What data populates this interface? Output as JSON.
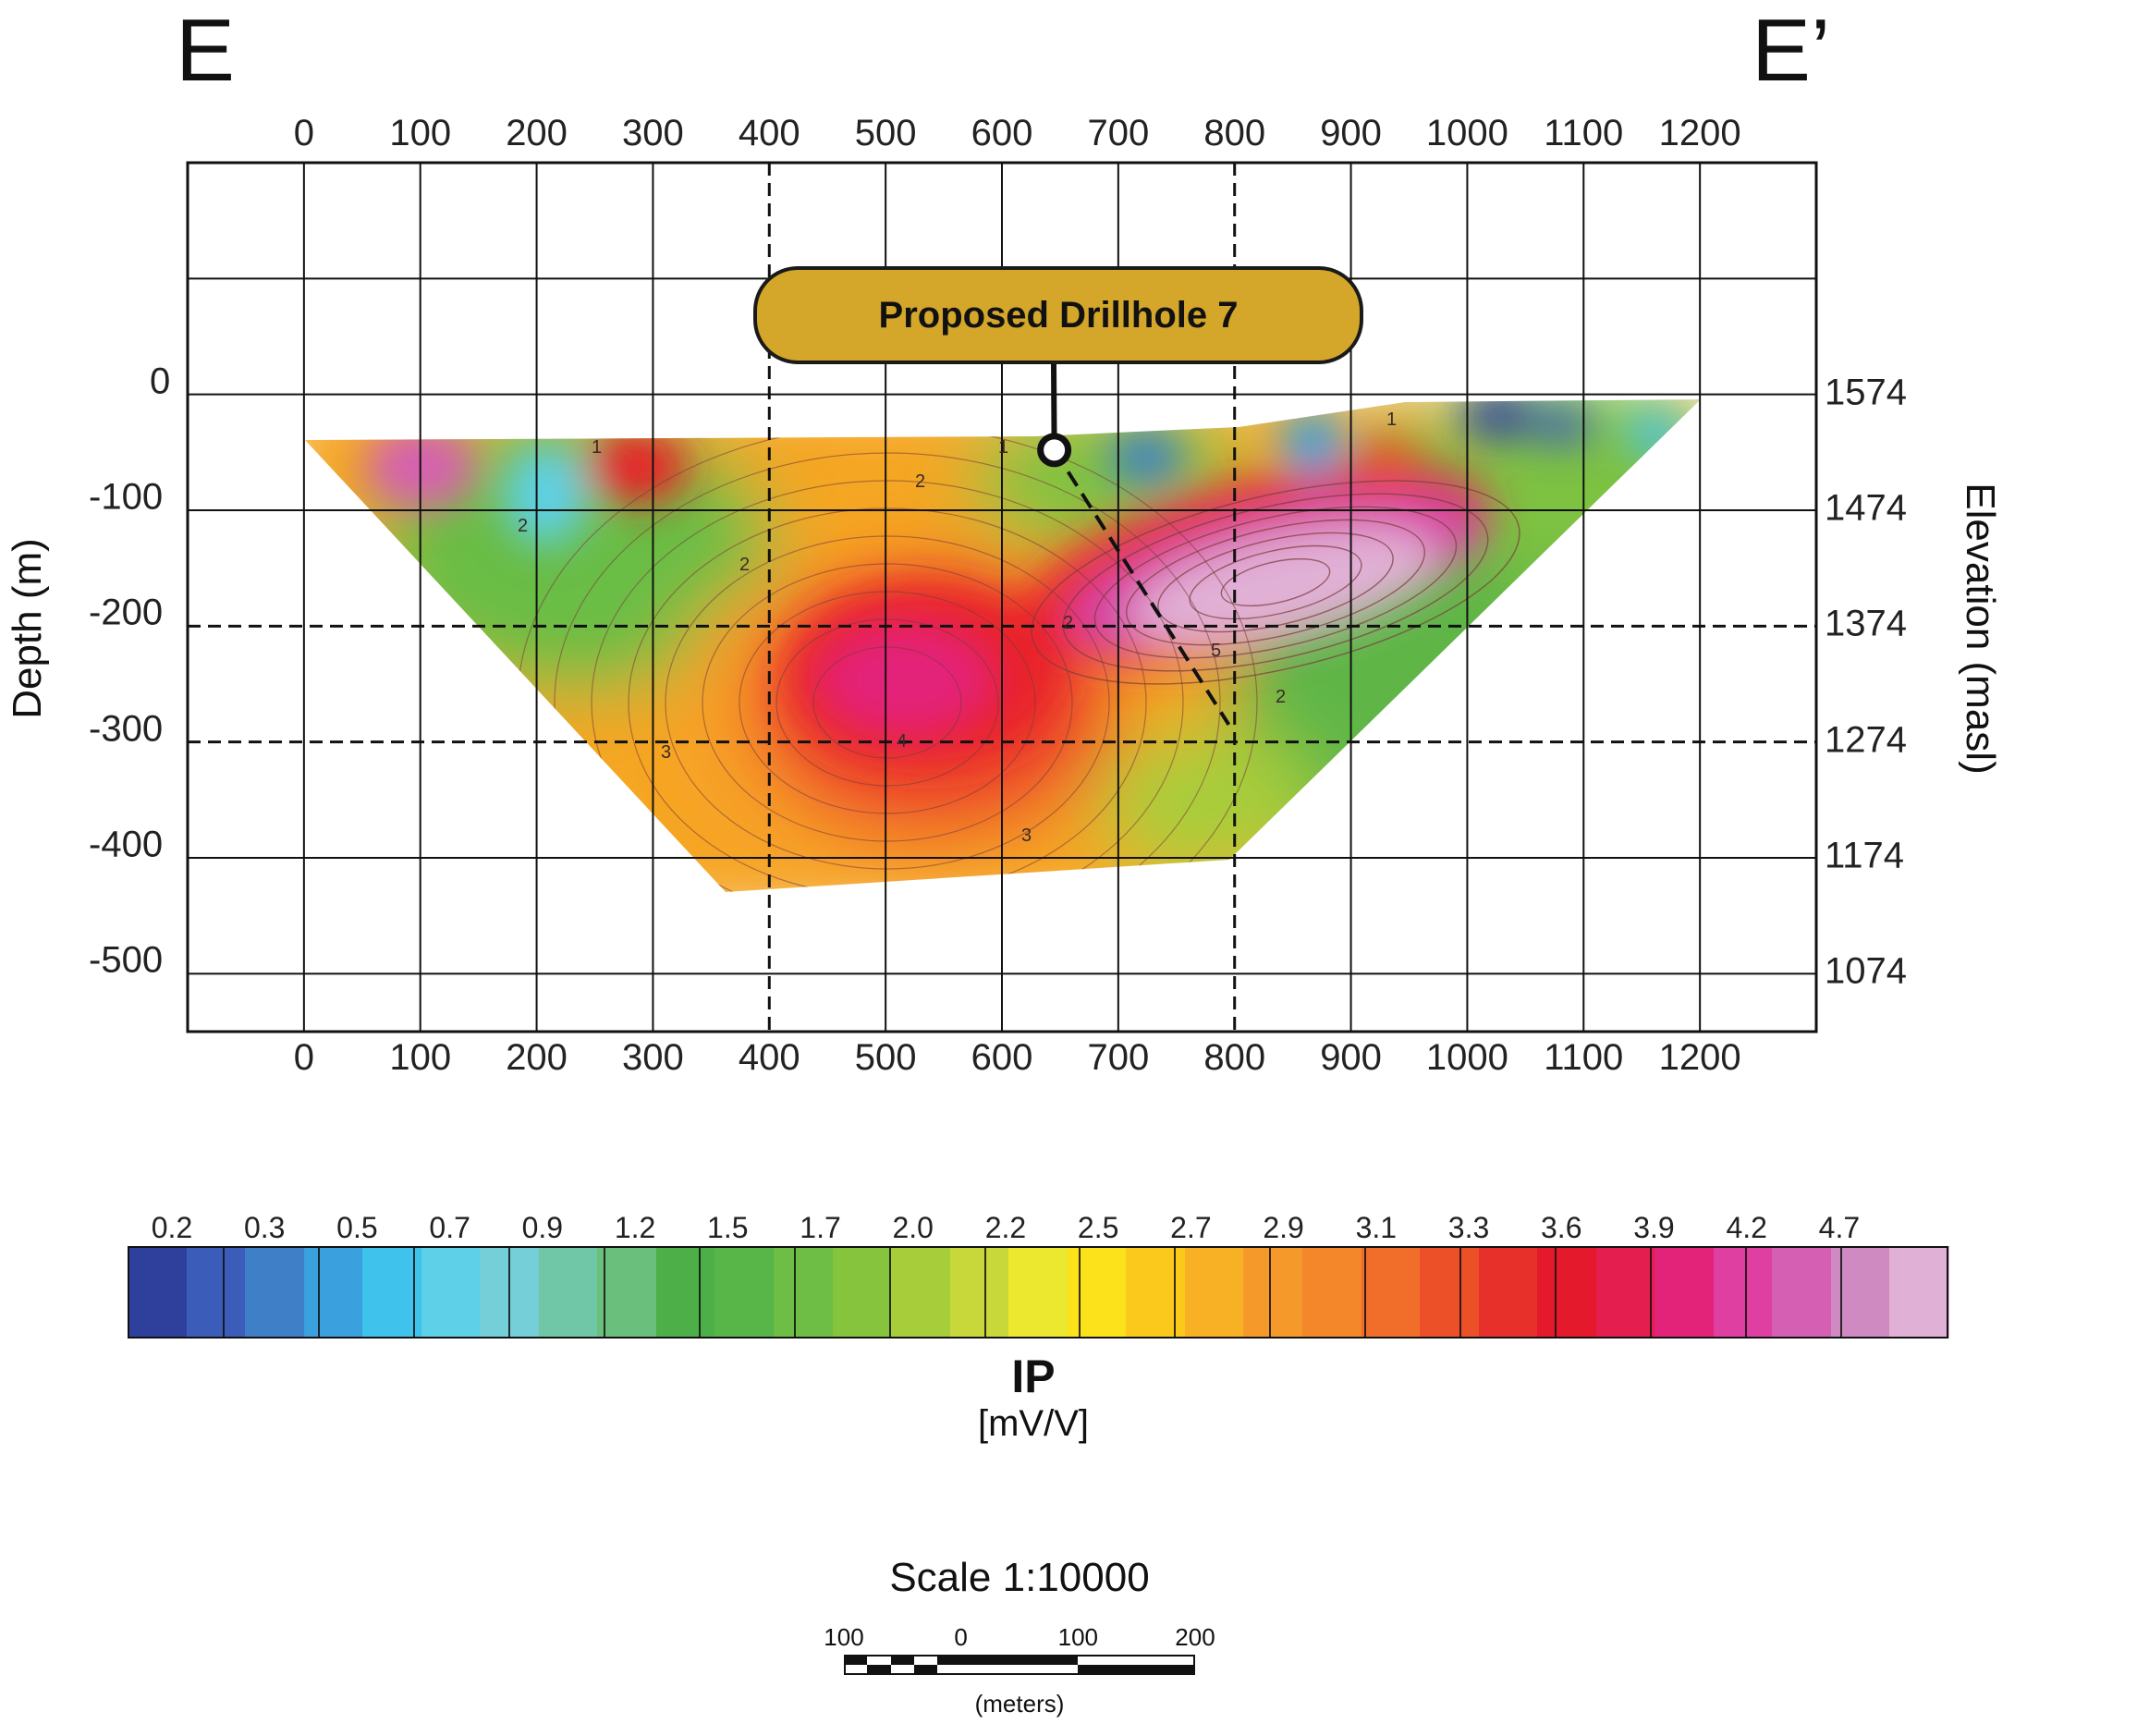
{
  "section": {
    "left_label": "E",
    "right_label": "E’"
  },
  "callout": {
    "label": "Proposed Drillhole 7"
  },
  "chart_data": {
    "type": "heatmap",
    "title": "",
    "x_ticks": [
      "0",
      "100",
      "200",
      "300",
      "400",
      "500",
      "600",
      "700",
      "800",
      "900",
      "1000",
      "1100",
      "1200"
    ],
    "xlim": [
      -100,
      1300
    ],
    "ylabel": "Depth (m)",
    "y_ticks": [
      "0",
      "-100",
      "-200",
      "-300",
      "-400",
      "-500"
    ],
    "ylim": [
      -550,
      200
    ],
    "y2label": "Elevation (masl)",
    "y2_ticks": [
      "1574",
      "1474",
      "1374",
      "1274",
      "1174",
      "1074"
    ],
    "grid": true,
    "contour_labels": [
      "2",
      "2",
      "2",
      "2",
      "3",
      "3",
      "4",
      "5",
      "2",
      "1",
      "1",
      "1"
    ],
    "drillhole": {
      "collar": [
        645,
        -48
      ],
      "toe": [
        795,
        -285
      ]
    },
    "colorbar": {
      "title": "IP",
      "unit": "[mV/V]",
      "ticks": [
        "0.2",
        "0.3",
        "0.5",
        "0.7",
        "0.9",
        "1.2",
        "1.5",
        "1.7",
        "2.0",
        "2.2",
        "2.5",
        "2.7",
        "2.9",
        "3.1",
        "3.3",
        "3.6",
        "3.9",
        "4.2",
        "4.7"
      ],
      "colors": [
        "#2e3f9c",
        "#3b5cb8",
        "#3f7fc8",
        "#3aa0de",
        "#3fc2ec",
        "#5ed0e8",
        "#74cfd8",
        "#6fc7a8",
        "#6abf7c",
        "#4caf48",
        "#58b648",
        "#6ebd44",
        "#86c43e",
        "#a7cd3a",
        "#c8d83a",
        "#ece830",
        "#fbe21a",
        "#fbc81c",
        "#f8b024",
        "#f59a2a",
        "#f3872a",
        "#f06e2a",
        "#ec5028",
        "#e8302a",
        "#e4192c",
        "#e41e4f",
        "#e3227a",
        "#de3fa0",
        "#d55fb2",
        "#d08ac2",
        "#e1b0d6"
      ]
    },
    "scale_bar": {
      "title": "Scale 1:10000",
      "ticks": [
        "100",
        "0",
        "100",
        "200"
      ],
      "unit": "(meters)"
    }
  }
}
